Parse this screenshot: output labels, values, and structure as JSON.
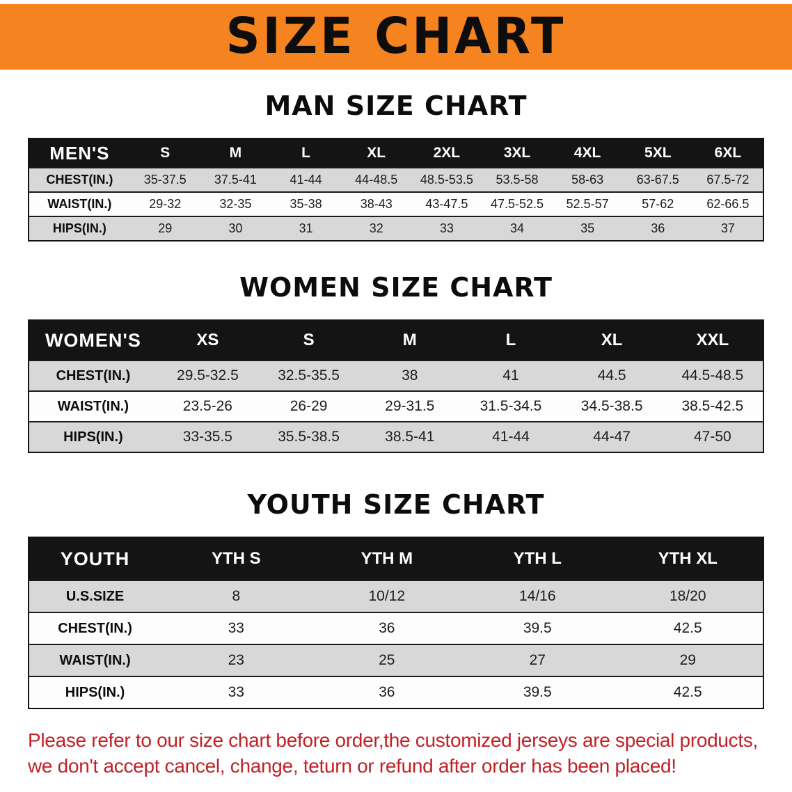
{
  "banner": {
    "title": "SIZE CHART",
    "bg_color": "#f5831f"
  },
  "sections": [
    {
      "heading": "MAN SIZE CHART",
      "table": {
        "header": [
          "MEN'S",
          "S",
          "M",
          "L",
          "XL",
          "2XL",
          "3XL",
          "4XL",
          "5XL",
          "6XL"
        ],
        "rows": [
          {
            "label": "CHEST(IN.)",
            "values": [
              "35-37.5",
              "37.5-41",
              "41-44",
              "44-48.5",
              "48.5-53.5",
              "53.5-58",
              "58-63",
              "63-67.5",
              "67.5-72"
            ]
          },
          {
            "label": "WAIST(IN.)",
            "values": [
              "29-32",
              "32-35",
              "35-38",
              "38-43",
              "43-47.5",
              "47.5-52.5",
              "52.5-57",
              "57-62",
              "62-66.5"
            ]
          },
          {
            "label": "HIPS(IN.)",
            "values": [
              "29",
              "30",
              "31",
              "32",
              "33",
              "34",
              "35",
              "36",
              "37"
            ]
          }
        ]
      }
    },
    {
      "heading": "WOMEN SIZE CHART",
      "table": {
        "header": [
          "WOMEN'S",
          "XS",
          "S",
          "M",
          "L",
          "XL",
          "XXL"
        ],
        "rows": [
          {
            "label": "CHEST(IN.)",
            "values": [
              "29.5-32.5",
              "32.5-35.5",
              "38",
              "41",
              "44.5",
              "44.5-48.5"
            ]
          },
          {
            "label": "WAIST(IN.)",
            "values": [
              "23.5-26",
              "26-29",
              "29-31.5",
              "31.5-34.5",
              "34.5-38.5",
              "38.5-42.5"
            ]
          },
          {
            "label": "HIPS(IN.)",
            "values": [
              "33-35.5",
              "35.5-38.5",
              "38.5-41",
              "41-44",
              "44-47",
              "47-50"
            ]
          }
        ]
      }
    },
    {
      "heading": "YOUTH SIZE CHART",
      "table": {
        "header": [
          "YOUTH",
          "YTH S",
          "YTH M",
          "YTH L",
          "YTH XL"
        ],
        "rows": [
          {
            "label": "U.S.SIZE",
            "values": [
              "8",
              "10/12",
              "14/16",
              "18/20"
            ]
          },
          {
            "label": "CHEST(IN.)",
            "values": [
              "33",
              "36",
              "39.5",
              "42.5"
            ]
          },
          {
            "label": "WAIST(IN.)",
            "values": [
              "23",
              "25",
              "27",
              "29"
            ]
          },
          {
            "label": "HIPS(IN.)",
            "values": [
              "33",
              "36",
              "39.5",
              "42.5"
            ]
          }
        ]
      }
    }
  ],
  "disclaimer": {
    "line1": "Please refer to our size chart before order,the customized jerseys are special products,",
    "line2": "we don't accept cancel, change, teturn or refund after order has been placed!",
    "color": "#c22026"
  }
}
